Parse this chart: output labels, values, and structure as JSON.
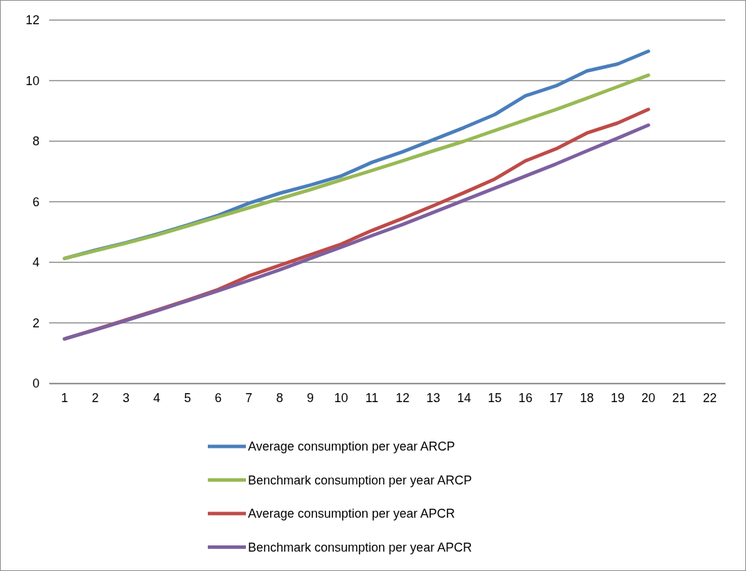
{
  "chart_data": {
    "type": "line",
    "categories": [
      "1",
      "2",
      "3",
      "4",
      "5",
      "6",
      "7",
      "8",
      "9",
      "10",
      "11",
      "12",
      "13",
      "14",
      "15",
      "16",
      "17",
      "18",
      "19",
      "20",
      "21",
      "22"
    ],
    "ylim": [
      0,
      12
    ],
    "yticks": [
      0,
      2,
      4,
      6,
      8,
      10,
      12
    ],
    "grid": "y",
    "legend": "bottom",
    "line_style": "solid",
    "marker": "none",
    "series": [
      {
        "name": "Average consumption per year ARCP",
        "color": "#4a7ebb",
        "values": [
          4.13,
          4.4,
          4.65,
          4.93,
          5.23,
          5.55,
          5.95,
          6.28,
          6.55,
          6.85,
          7.3,
          7.65,
          8.05,
          8.45,
          8.88,
          9.5,
          9.83,
          10.32,
          10.55,
          10.97,
          null,
          null
        ]
      },
      {
        "name": "Benchmark consumption per year ARCP",
        "color": "#98b954",
        "values": [
          4.13,
          4.38,
          4.63,
          4.9,
          5.2,
          5.5,
          5.8,
          6.1,
          6.4,
          6.72,
          7.03,
          7.35,
          7.68,
          8.0,
          8.35,
          8.7,
          9.05,
          9.42,
          9.8,
          10.18,
          null,
          null
        ]
      },
      {
        "name": "Average consumption per year APCR",
        "color": "#be4b48",
        "values": [
          1.47,
          1.78,
          2.1,
          2.42,
          2.75,
          3.1,
          3.55,
          3.9,
          4.25,
          4.6,
          5.05,
          5.45,
          5.87,
          6.3,
          6.75,
          7.35,
          7.75,
          8.27,
          8.6,
          9.05,
          null,
          null
        ]
      },
      {
        "name": "Benchmark consumption per year APCR",
        "color": "#7d60a0",
        "values": [
          1.47,
          1.77,
          2.08,
          2.4,
          2.73,
          3.06,
          3.4,
          3.75,
          4.13,
          4.5,
          4.88,
          5.25,
          5.65,
          6.05,
          6.45,
          6.85,
          7.25,
          7.68,
          8.1,
          8.53,
          null,
          null
        ]
      }
    ]
  }
}
